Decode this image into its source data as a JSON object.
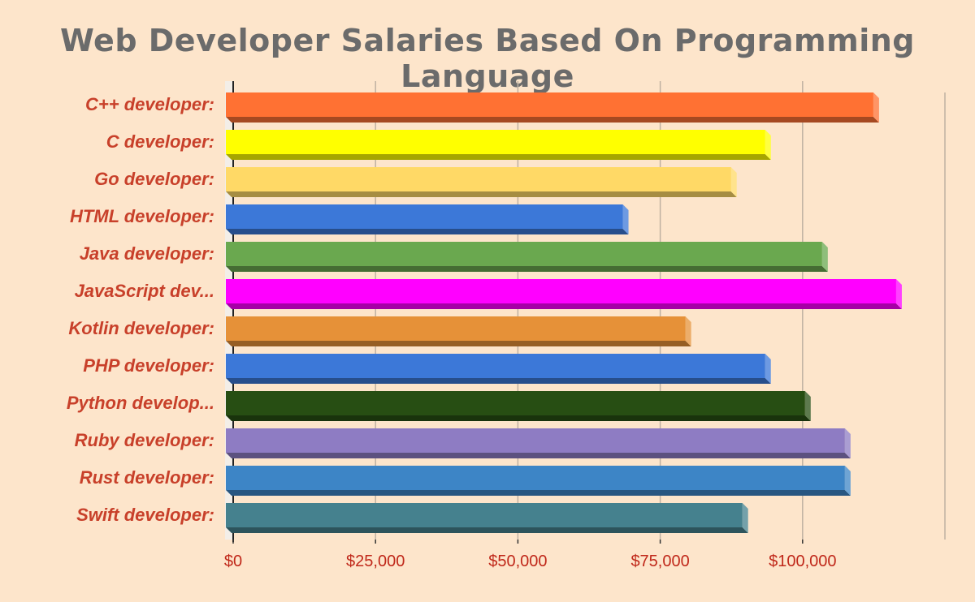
{
  "chart_data": {
    "type": "bar",
    "orientation": "horizontal",
    "title": "Web Developer Salaries Based On Programming Language",
    "xlabel": "",
    "ylabel": "",
    "categories": [
      "C++ developer:",
      "C developer:",
      "Go developer:",
      "HTML developer:",
      "Java developer:",
      "JavaScript dev...",
      "Kotlin developer:",
      "PHP developer:",
      "Python develop...",
      "Ruby developer:",
      "Rust developer:",
      "Swift developer:"
    ],
    "values": [
      113000,
      94000,
      88000,
      69000,
      104000,
      117000,
      80000,
      94000,
      101000,
      108000,
      108000,
      90000
    ],
    "colors": [
      "#ff7133",
      "#ffff00",
      "#ffd966",
      "#3c78d8",
      "#6aa84f",
      "#ff00ff",
      "#e69138",
      "#3c78d8",
      "#274e13",
      "#8e7cc3",
      "#3d85c6",
      "#45818e"
    ],
    "xlim": [
      0,
      125000
    ],
    "x_ticks": [
      0,
      25000,
      50000,
      75000,
      100000
    ],
    "x_tick_labels": [
      "$0",
      "$25,000",
      "$50,000",
      "$75,000",
      "$100,000"
    ],
    "grid": true,
    "legend": "none"
  }
}
